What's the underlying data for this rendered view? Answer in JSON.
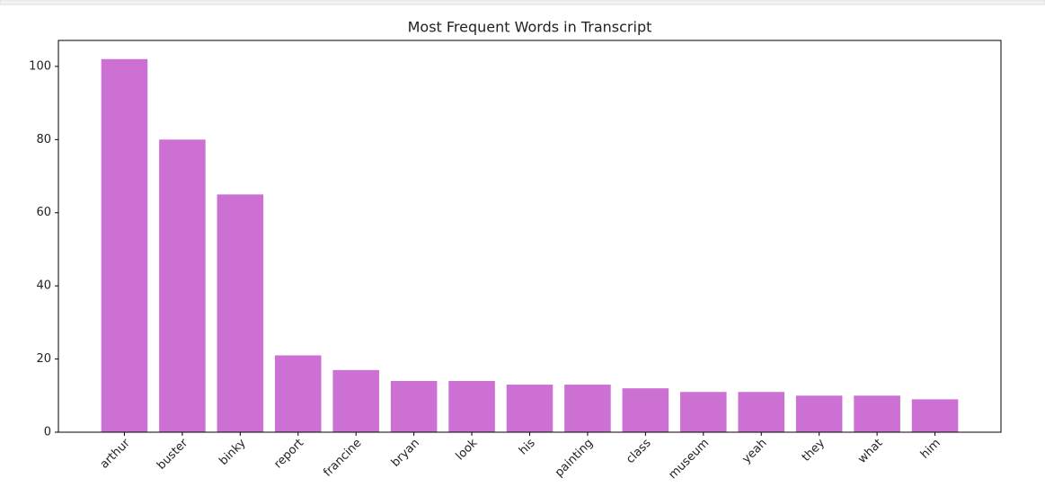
{
  "chart_data": {
    "type": "bar",
    "title": "Most Frequent Words in Transcript",
    "categories": [
      "arthur",
      "buster",
      "binky",
      "report",
      "francine",
      "bryan",
      "look",
      "his",
      "painting",
      "class",
      "museum",
      "yeah",
      "they",
      "what",
      "him"
    ],
    "values": [
      102,
      80,
      65,
      21,
      17,
      14,
      14,
      13,
      13,
      12,
      11,
      11,
      10,
      10,
      9
    ],
    "color": "#cd70d4",
    "ylim": [
      0,
      107.1
    ],
    "yticks": [
      0,
      20,
      40,
      60,
      80,
      100
    ],
    "grid": false
  }
}
